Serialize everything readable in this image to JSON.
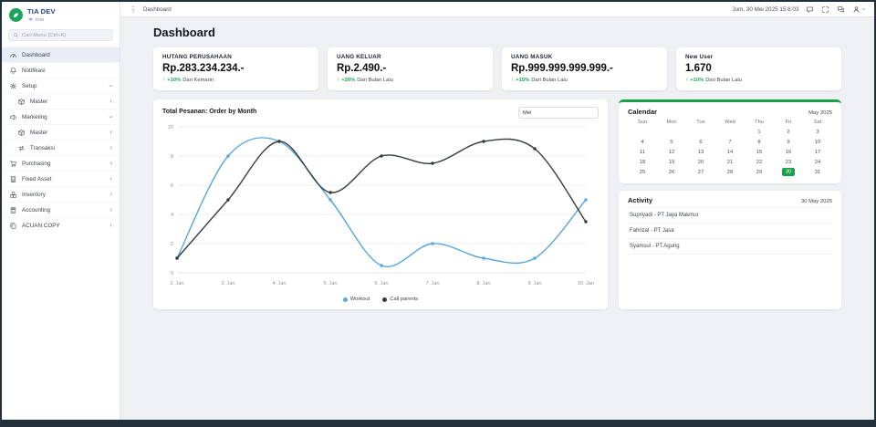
{
  "colors": {
    "accent_green": "#1ba14b",
    "positive_green": "#1da951",
    "brand_blue": "#24427c"
  },
  "topbar": {
    "breadcrumb": "Dashboard",
    "datetime": "Jum, 30 Mei 2025 15:6:03"
  },
  "sidebar": {
    "brand": {
      "name": "TIA DEV",
      "subtitle": "trial"
    },
    "search_placeholder": "Cari Menu (Ctrl+K)",
    "items": [
      {
        "label": "Dashboard",
        "icon": "gauge",
        "active": true
      },
      {
        "label": "Notifikasi",
        "icon": "bell"
      },
      {
        "label": "Setup",
        "icon": "gear",
        "chevron": "down"
      },
      {
        "label": "Master",
        "icon": "box",
        "sub": true,
        "chevron": "left"
      },
      {
        "label": "Marketing",
        "icon": "megaphone",
        "chevron": "down"
      },
      {
        "label": "Master",
        "icon": "box",
        "sub": true,
        "chevron": "left"
      },
      {
        "label": "Transaksi",
        "icon": "exchange",
        "sub": true,
        "chevron": "left"
      },
      {
        "label": "Purchasing",
        "icon": "cart",
        "chevron": "left"
      },
      {
        "label": "Fixed Asset",
        "icon": "building",
        "chevron": "left"
      },
      {
        "label": "Inventory",
        "icon": "boxes",
        "chevron": "left"
      },
      {
        "label": "Accounting",
        "icon": "calc",
        "chevron": "left"
      },
      {
        "label": "ACUAN COPY",
        "icon": "copy",
        "chevron": "left"
      }
    ]
  },
  "page": {
    "title": "Dashboard"
  },
  "stats": [
    {
      "title": "HUTANG PERUSAHAAN",
      "value": "Rp.283.234.234.-",
      "delta": "+10%",
      "delta_suffix": "Dari Kemarin"
    },
    {
      "title": "UANG KELUAR",
      "value": "Rp.2.490.-",
      "delta": "+20%",
      "delta_suffix": "Dari Bulan Lalu"
    },
    {
      "title": "UANG MASUK",
      "value": "Rp.999.999.999.999.-",
      "delta": "+15%",
      "delta_suffix": "Dari Bulan Lalu"
    },
    {
      "title": "New User",
      "value": "1.670",
      "delta": "+10%",
      "delta_suffix": "Dari Bulan Lalu"
    }
  ],
  "chart_card": {
    "title": "Total Pesanan: Order by Month",
    "filter_value": "Mei"
  },
  "chart_data": {
    "type": "line",
    "title": "Total Pesanan: Order by Month",
    "categories": [
      "2. Jan",
      "3. Jan",
      "4. Jan",
      "5. Jan",
      "6. Jan",
      "7. Jan",
      "8. Jan",
      "9. Jan",
      "10. Jan"
    ],
    "series": [
      {
        "name": "Workout",
        "color": "#56a5dd",
        "values": [
          1,
          8,
          9,
          5,
          0.5,
          2,
          1,
          1,
          5
        ]
      },
      {
        "name": "Call parents",
        "color": "#343a40",
        "values": [
          1,
          5,
          9,
          5.5,
          8,
          7.5,
          9,
          8.5,
          3.5
        ]
      }
    ],
    "xlabel": "",
    "ylabel": "",
    "ylim": [
      0,
      10
    ],
    "yticks": [
      0,
      2,
      4,
      6,
      8,
      10
    ],
    "grid": true,
    "legend_position": "bottom"
  },
  "calendar": {
    "title": "Calendar",
    "month_label": "May 2025",
    "weekdays": [
      "Sun",
      "Mon",
      "Tue",
      "Wed",
      "Thu",
      "Fri",
      "Sat"
    ],
    "weeks": [
      [
        "",
        "",
        "",
        "",
        "1",
        "2",
        "3"
      ],
      [
        "4",
        "5",
        "6",
        "7",
        "8",
        "9",
        "10"
      ],
      [
        "11",
        "12",
        "13",
        "14",
        "15",
        "16",
        "17"
      ],
      [
        "18",
        "19",
        "20",
        "21",
        "22",
        "23",
        "24"
      ],
      [
        "25",
        "26",
        "27",
        "28",
        "29",
        "30",
        "31"
      ]
    ],
    "selected_day": "30"
  },
  "activity": {
    "title": "Activity",
    "date_label": "30 May 2025",
    "items": [
      "Supriyadi - PT Jaya Makmur",
      "Fahrizal - PT Jasa",
      "Syamsul - PT Agung"
    ]
  }
}
